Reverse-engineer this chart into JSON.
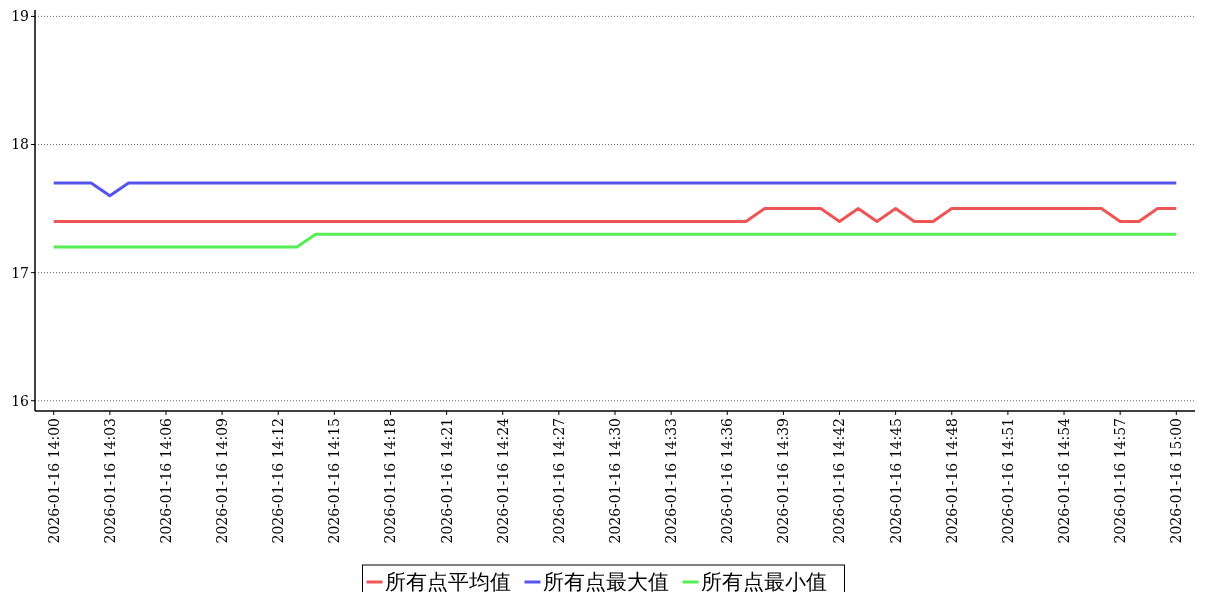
{
  "chart_data": {
    "type": "line",
    "x": [
      "2026-01-16T14:00",
      "2026-01-16T14:01",
      "2026-01-16T14:02",
      "2026-01-16T14:03",
      "2026-01-16T14:04",
      "2026-01-16T14:05",
      "2026-01-16T14:06",
      "2026-01-16T14:07",
      "2026-01-16T14:08",
      "2026-01-16T14:09",
      "2026-01-16T14:10",
      "2026-01-16T14:11",
      "2026-01-16T14:12",
      "2026-01-16T14:13",
      "2026-01-16T14:14",
      "2026-01-16T14:15",
      "2026-01-16T14:16",
      "2026-01-16T14:17",
      "2026-01-16T14:18",
      "2026-01-16T14:19",
      "2026-01-16T14:20",
      "2026-01-16T14:21",
      "2026-01-16T14:22",
      "2026-01-16T14:23",
      "2026-01-16T14:24",
      "2026-01-16T14:25",
      "2026-01-16T14:26",
      "2026-01-16T14:27",
      "2026-01-16T14:28",
      "2026-01-16T14:29",
      "2026-01-16T14:30",
      "2026-01-16T14:31",
      "2026-01-16T14:32",
      "2026-01-16T14:33",
      "2026-01-16T14:34",
      "2026-01-16T14:35",
      "2026-01-16T14:36",
      "2026-01-16T14:37",
      "2026-01-16T14:38",
      "2026-01-16T14:39",
      "2026-01-16T14:40",
      "2026-01-16T14:41",
      "2026-01-16T14:42",
      "2026-01-16T14:43",
      "2026-01-16T14:44",
      "2026-01-16T14:45",
      "2026-01-16T14:46",
      "2026-01-16T14:47",
      "2026-01-16T14:48",
      "2026-01-16T14:49",
      "2026-01-16T14:50",
      "2026-01-16T14:51",
      "2026-01-16T14:52",
      "2026-01-16T14:53",
      "2026-01-16T14:54",
      "2026-01-16T14:55",
      "2026-01-16T14:56",
      "2026-01-16T14:57",
      "2026-01-16T14:58",
      "2026-01-16T14:59",
      "2026-01-16T15:00"
    ],
    "series": [
      {
        "name": "所有点平均值",
        "color": "#ee5555",
        "values": [
          17.4,
          17.4,
          17.4,
          17.4,
          17.4,
          17.4,
          17.4,
          17.4,
          17.4,
          17.4,
          17.4,
          17.4,
          17.4,
          17.4,
          17.4,
          17.4,
          17.4,
          17.4,
          17.4,
          17.4,
          17.4,
          17.4,
          17.4,
          17.4,
          17.4,
          17.4,
          17.4,
          17.4,
          17.4,
          17.4,
          17.4,
          17.4,
          17.4,
          17.4,
          17.4,
          17.4,
          17.4,
          17.4,
          17.5,
          17.5,
          17.5,
          17.5,
          17.4,
          17.5,
          17.4,
          17.5,
          17.4,
          17.4,
          17.5,
          17.5,
          17.5,
          17.5,
          17.5,
          17.5,
          17.5,
          17.5,
          17.5,
          17.4,
          17.4,
          17.5,
          17.5
        ]
      },
      {
        "name": "所有点最大值",
        "color": "#5555ee",
        "values": [
          17.7,
          17.7,
          17.7,
          17.6,
          17.7,
          17.7,
          17.7,
          17.7,
          17.7,
          17.7,
          17.7,
          17.7,
          17.7,
          17.7,
          17.7,
          17.7,
          17.7,
          17.7,
          17.7,
          17.7,
          17.7,
          17.7,
          17.7,
          17.7,
          17.7,
          17.7,
          17.7,
          17.7,
          17.7,
          17.7,
          17.7,
          17.7,
          17.7,
          17.7,
          17.7,
          17.7,
          17.7,
          17.7,
          17.7,
          17.7,
          17.7,
          17.7,
          17.7,
          17.7,
          17.7,
          17.7,
          17.7,
          17.7,
          17.7,
          17.7,
          17.7,
          17.7,
          17.7,
          17.7,
          17.7,
          17.7,
          17.7,
          17.7,
          17.7,
          17.7,
          17.7
        ]
      },
      {
        "name": "所有点最小值",
        "color": "#55ee55",
        "values": [
          17.2,
          17.2,
          17.2,
          17.2,
          17.2,
          17.2,
          17.2,
          17.2,
          17.2,
          17.2,
          17.2,
          17.2,
          17.2,
          17.2,
          17.3,
          17.3,
          17.3,
          17.3,
          17.3,
          17.3,
          17.3,
          17.3,
          17.3,
          17.3,
          17.3,
          17.3,
          17.3,
          17.3,
          17.3,
          17.3,
          17.3,
          17.3,
          17.3,
          17.3,
          17.3,
          17.3,
          17.3,
          17.3,
          17.3,
          17.3,
          17.3,
          17.3,
          17.3,
          17.3,
          17.3,
          17.3,
          17.3,
          17.3,
          17.3,
          17.3,
          17.3,
          17.3,
          17.3,
          17.3,
          17.3,
          17.3,
          17.3,
          17.3,
          17.3,
          17.3,
          17.3
        ]
      }
    ],
    "xlim": [
      "2026-01-16T13:59",
      "2026-01-16T15:01"
    ],
    "xticks": [
      {
        "value": "2026-01-16T14:00",
        "label": "2026-01-16 14:00"
      },
      {
        "value": "2026-01-16T14:03",
        "label": "2026-01-16 14:03"
      },
      {
        "value": "2026-01-16T14:06",
        "label": "2026-01-16 14:06"
      },
      {
        "value": "2026-01-16T14:09",
        "label": "2026-01-16 14:09"
      },
      {
        "value": "2026-01-16T14:12",
        "label": "2026-01-16 14:12"
      },
      {
        "value": "2026-01-16T14:15",
        "label": "2026-01-16 14:15"
      },
      {
        "value": "2026-01-16T14:18",
        "label": "2026-01-16 14:18"
      },
      {
        "value": "2026-01-16T14:21",
        "label": "2026-01-16 14:21"
      },
      {
        "value": "2026-01-16T14:24",
        "label": "2026-01-16 14:24"
      },
      {
        "value": "2026-01-16T14:27",
        "label": "2026-01-16 14:27"
      },
      {
        "value": "2026-01-16T14:30",
        "label": "2026-01-16 14:30"
      },
      {
        "value": "2026-01-16T14:33",
        "label": "2026-01-16 14:33"
      },
      {
        "value": "2026-01-16T14:36",
        "label": "2026-01-16 14:36"
      },
      {
        "value": "2026-01-16T14:39",
        "label": "2026-01-16 14:39"
      },
      {
        "value": "2026-01-16T14:42",
        "label": "2026-01-16 14:42"
      },
      {
        "value": "2026-01-16T14:45",
        "label": "2026-01-16 14:45"
      },
      {
        "value": "2026-01-16T14:48",
        "label": "2026-01-16 14:48"
      },
      {
        "value": "2026-01-16T14:51",
        "label": "2026-01-16 14:51"
      },
      {
        "value": "2026-01-16T14:54",
        "label": "2026-01-16 14:54"
      },
      {
        "value": "2026-01-16T14:57",
        "label": "2026-01-16 14:57"
      },
      {
        "value": "2026-01-16T15:00",
        "label": "2026-01-16 15:00"
      }
    ],
    "ylim": [
      15.92,
      19.05
    ],
    "yticks": [
      16,
      17,
      18,
      19
    ],
    "grid": "y",
    "legend": "bottom",
    "marker": "none",
    "line_style": "solid"
  }
}
